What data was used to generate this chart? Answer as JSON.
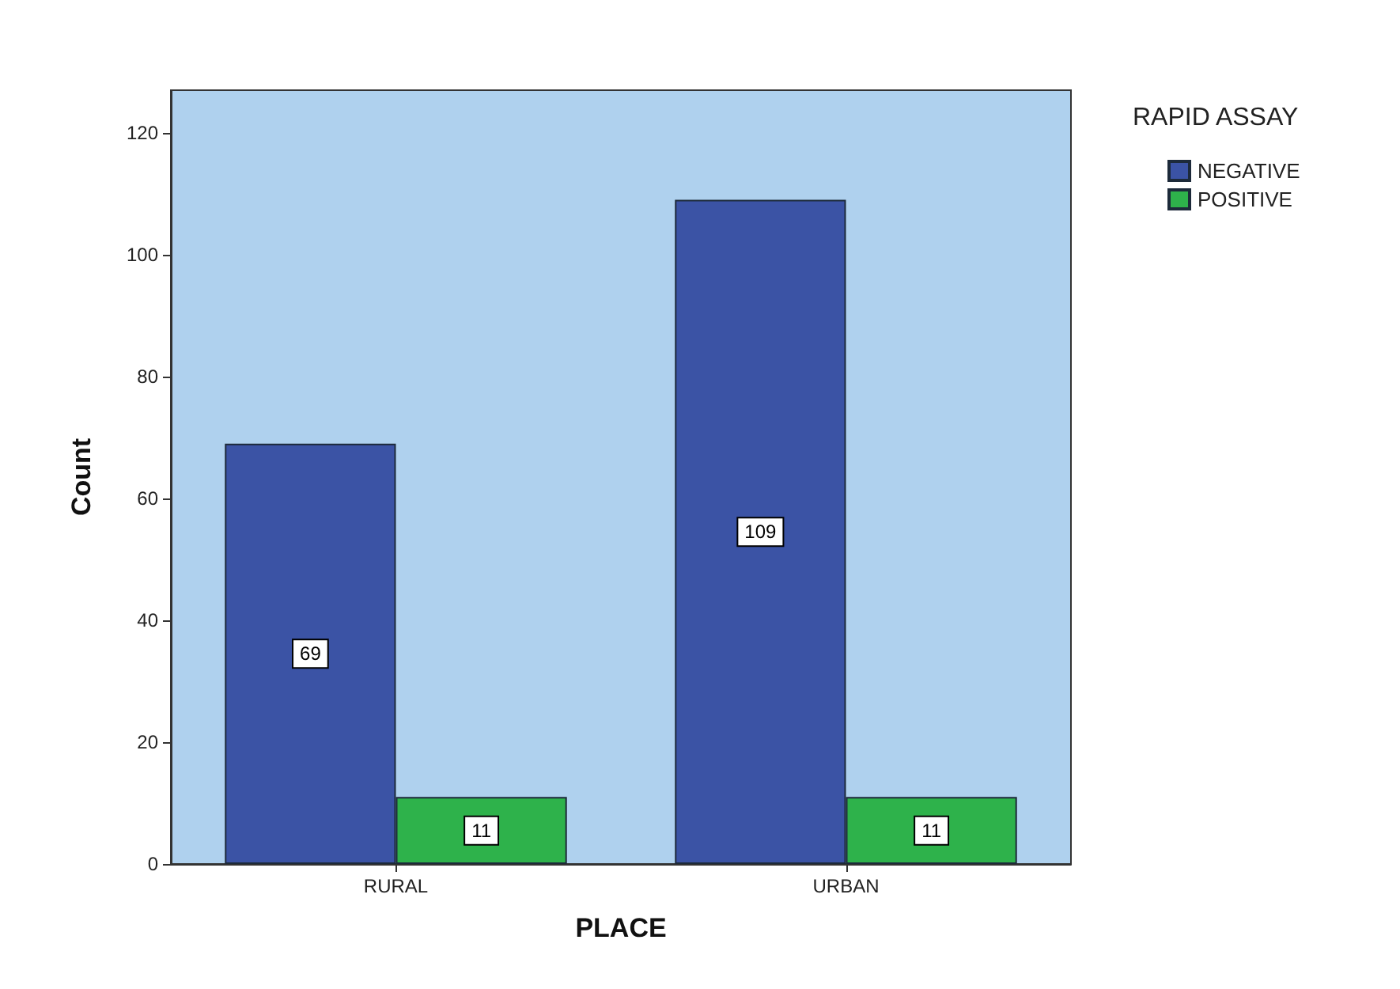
{
  "chart_data": {
    "type": "bar",
    "xlabel": "PLACE",
    "ylabel": "Count",
    "legend_title": "RAPID ASSAY",
    "categories": [
      "RURAL",
      "URBAN"
    ],
    "series": [
      {
        "name": "NEGATIVE",
        "color": "#3b53a5",
        "values": [
          69,
          109
        ]
      },
      {
        "name": "POSITIVE",
        "color": "#2eb24b",
        "values": [
          11,
          11
        ]
      }
    ],
    "ylim": [
      0,
      127
    ],
    "yticks": [
      0,
      20,
      40,
      60,
      80,
      100,
      120
    ],
    "grid": false,
    "legend": "top right",
    "data_labels": true
  }
}
